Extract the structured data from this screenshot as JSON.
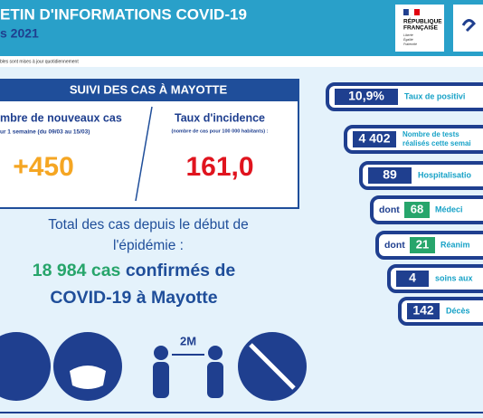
{
  "header": {
    "title": "ETIN D'INFORMATIONS COVID-19",
    "subtitle": "s 2021",
    "note": "bles sont mises à jour quotidiennement",
    "logo": {
      "line1": "RÉPUBLIQUE",
      "line2": "FRANÇAISE",
      "motto": [
        "Liberté",
        "Égalité",
        "Fraternité"
      ]
    }
  },
  "suivi": {
    "title": "SUIVI DES CAS À MAYOTTE",
    "new_cases": {
      "label": "mbre de nouveaux cas",
      "sub": "ur 1 semaine (du 09/03 au 15/03)",
      "value": "+450"
    },
    "incidence": {
      "label": "Taux d'incidence",
      "sub": "(nombre de cas pour 100 000 habitants) :",
      "value": "161,0"
    }
  },
  "total": {
    "line1": "Total des cas depuis le début de",
    "line2": "l'épidémie :",
    "count": "18 984 cas",
    "after": " confirmés de",
    "line4": "COVID-19 à Mayotte"
  },
  "indicators": [
    {
      "value": "10,9%",
      "label": "Taux de positivi"
    },
    {
      "value": "4 402",
      "label": [
        "Nombre de tests",
        "réalisés cette semai"
      ]
    },
    {
      "value": "89",
      "label": "Hospitalisatio"
    },
    {
      "prefix": "dont",
      "value": "68",
      "label": "Médeci"
    },
    {
      "prefix": "dont",
      "value": "21",
      "label": "Réanim"
    },
    {
      "value": "4",
      "label": "soins aux"
    },
    {
      "value": "142",
      "label": "Décès"
    }
  ],
  "icons": {
    "distance": "2M"
  }
}
